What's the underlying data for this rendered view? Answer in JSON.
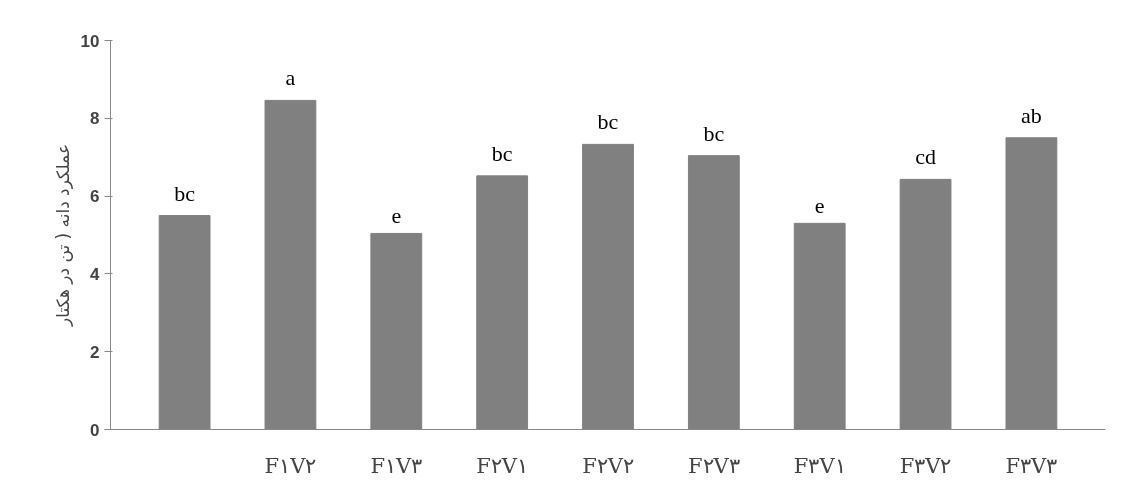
{
  "chart_data": {
    "type": "bar",
    "ylabel": "عملکرد دانه ( تن در هکتار",
    "categories": [
      null,
      "F۱V۲",
      "F۱V۳",
      "F۲V۱",
      "F۲V۲",
      "F۲V۳",
      "F۳V۱",
      "F۳V۲",
      "F۳V۳"
    ],
    "values": [
      5.5,
      8.46,
      5.04,
      6.52,
      7.33,
      7.04,
      5.3,
      6.43,
      7.5
    ],
    "value_labels": [
      "bc",
      "a",
      "e",
      "bc",
      "bc",
      "bc",
      "e",
      "cd",
      "ab"
    ],
    "color": "#808080",
    "ylim": [
      0,
      10
    ],
    "yticks": [
      0,
      2,
      4,
      6,
      8,
      10
    ],
    "grid": false
  }
}
